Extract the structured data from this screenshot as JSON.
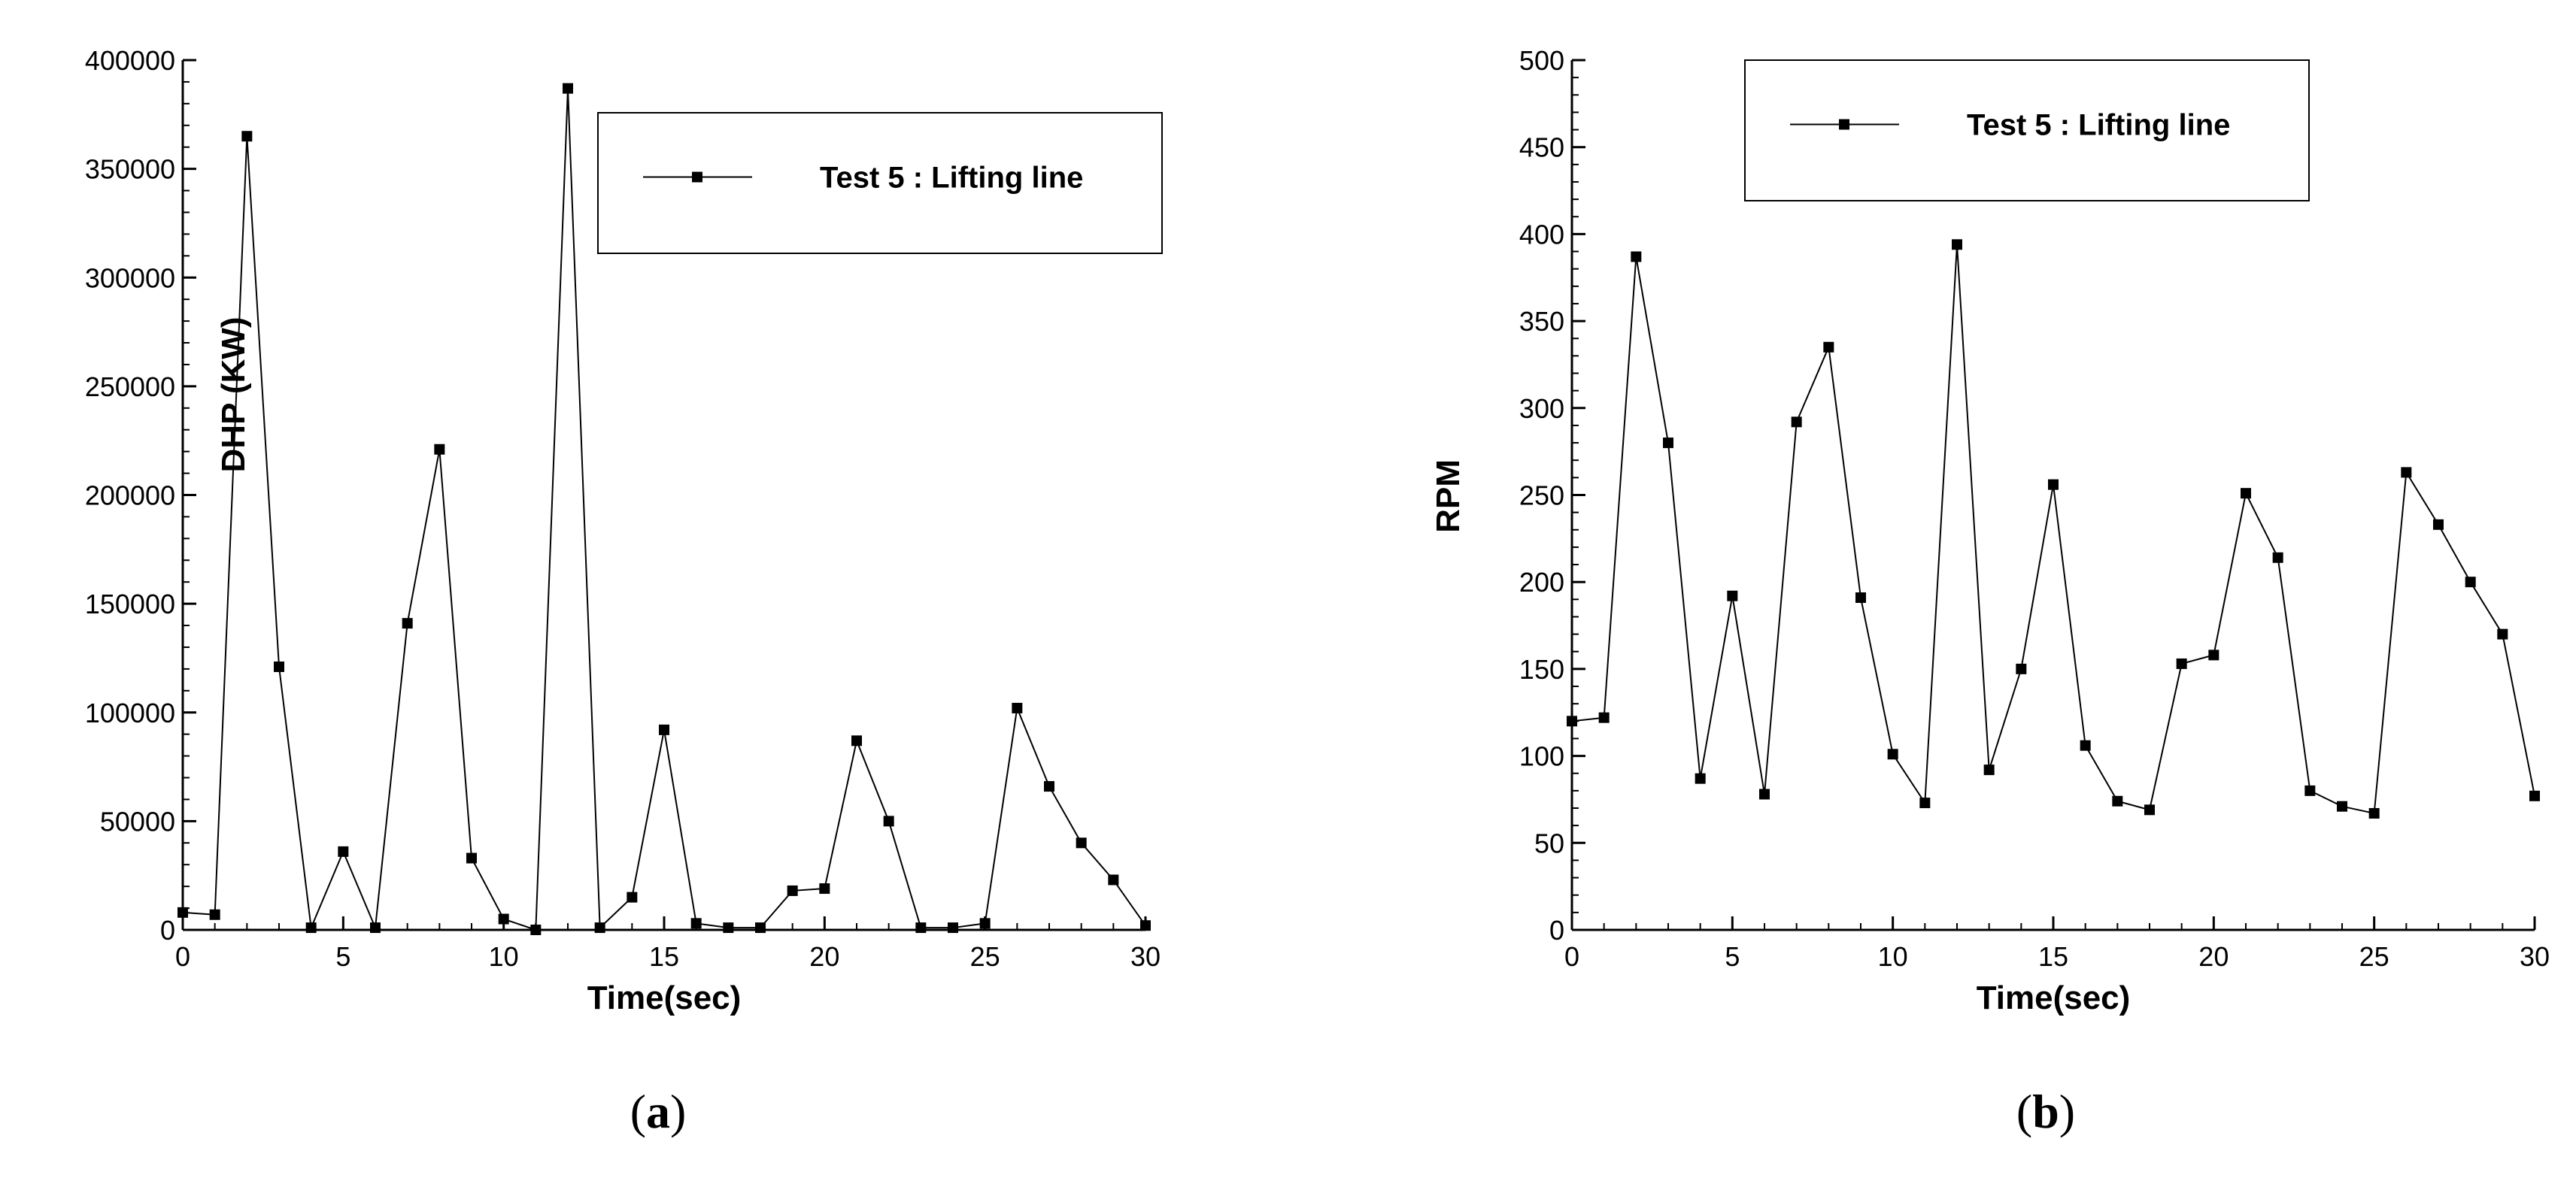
{
  "chart_data": [
    {
      "type": "line",
      "panel_label": "a",
      "xlabel": "Time(sec)",
      "ylabel": "DHP (KW)",
      "xlim": [
        0,
        30
      ],
      "ylim": [
        0,
        400000
      ],
      "xticks": [
        0,
        5,
        10,
        15,
        20,
        25,
        30
      ],
      "yticks": [
        0,
        50000,
        100000,
        150000,
        200000,
        250000,
        300000,
        350000,
        400000
      ],
      "grid": false,
      "legend_position": "top-right",
      "series": [
        {
          "name": "Test 5 : Lifting line",
          "marker": "square",
          "x": [
            0,
            1,
            2,
            3,
            4,
            5,
            6,
            7,
            8,
            9,
            10,
            11,
            12,
            13,
            14,
            15,
            16,
            17,
            18,
            19,
            20,
            21,
            22,
            23,
            24,
            25,
            26,
            27,
            28,
            29,
            30
          ],
          "y": [
            8000,
            7000,
            365000,
            121000,
            1000,
            36000,
            1000,
            141000,
            221000,
            33000,
            5000,
            0,
            387000,
            1000,
            15000,
            92000,
            3000,
            1000,
            1000,
            18000,
            19000,
            87000,
            50000,
            1000,
            1000,
            3000,
            102000,
            66000,
            40000,
            23000,
            2000
          ]
        }
      ]
    },
    {
      "type": "line",
      "panel_label": "b",
      "xlabel": "Time(sec)",
      "ylabel": "RPM",
      "xlim": [
        0,
        30
      ],
      "ylim": [
        0,
        500
      ],
      "xticks": [
        0,
        5,
        10,
        15,
        20,
        25,
        30
      ],
      "yticks": [
        0,
        50,
        100,
        150,
        200,
        250,
        300,
        350,
        400,
        450,
        500
      ],
      "grid": false,
      "legend_position": "top-right",
      "series": [
        {
          "name": "Test 5 : Lifting line",
          "marker": "square",
          "x": [
            0,
            1,
            2,
            3,
            4,
            5,
            6,
            7,
            8,
            9,
            10,
            11,
            12,
            13,
            14,
            15,
            16,
            17,
            18,
            19,
            20,
            21,
            22,
            23,
            24,
            25,
            26,
            27,
            28,
            29,
            30
          ],
          "y": [
            120,
            122,
            387,
            280,
            87,
            192,
            78,
            292,
            335,
            191,
            101,
            73,
            394,
            92,
            150,
            256,
            106,
            74,
            69,
            153,
            158,
            251,
            214,
            80,
            71,
            67,
            263,
            233,
            200,
            170,
            77
          ]
        }
      ]
    }
  ],
  "captions": [
    {
      "open": "(",
      "letter": "a",
      "close": ")"
    },
    {
      "open": "(",
      "letter": "b",
      "close": ")"
    }
  ]
}
